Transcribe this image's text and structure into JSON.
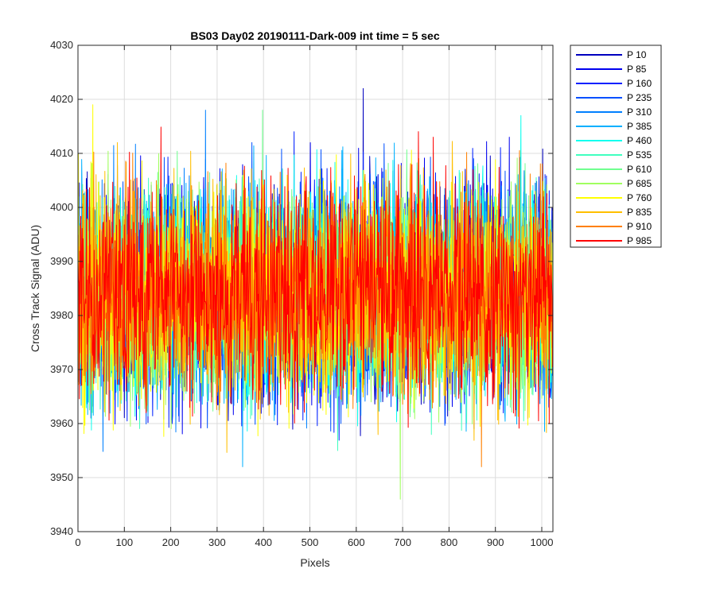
{
  "chart_data": {
    "type": "line",
    "title": "BS03 Day02 20190111-Dark-009 int time = 5 sec",
    "xlabel": "Pixels",
    "ylabel": "Cross Track Signal (ADU)",
    "xlim": [
      0,
      1024
    ],
    "ylim": [
      3940,
      4030
    ],
    "xticks": [
      0,
      100,
      200,
      300,
      400,
      500,
      600,
      700,
      800,
      900,
      1000
    ],
    "yticks": [
      3940,
      3950,
      3960,
      3970,
      3980,
      3990,
      4000,
      4010,
      4020,
      4030
    ],
    "grid": true,
    "legend_position": "outside-top-right",
    "n_points_per_series": 1024,
    "signal_mean": 3984,
    "signal_typical_range": [
      3960,
      4010
    ],
    "series": [
      {
        "name": "P 10",
        "color": "#0000bf",
        "peak": {
          "x": 615,
          "y": 4022
        }
      },
      {
        "name": "P 85",
        "color": "#0000ef",
        "peak": {
          "x": 930,
          "y": 4013
        }
      },
      {
        "name": "P 160",
        "color": "#0020ff",
        "peak": {
          "x": 466,
          "y": 4014
        }
      },
      {
        "name": "P 235",
        "color": "#0050ff",
        "peak": {
          "x": 375,
          "y": 4012
        }
      },
      {
        "name": "P 310",
        "color": "#0080ff",
        "peak": {
          "x": 275,
          "y": 4018
        }
      },
      {
        "name": "P 385",
        "color": "#00b0ff",
        "trough": {
          "x": 355,
          "y": 3952
        }
      },
      {
        "name": "P 460",
        "color": "#10ffef",
        "peak": {
          "x": 955,
          "y": 4017
        }
      },
      {
        "name": "P 535",
        "color": "#40ffbf",
        "trough": {
          "x": 560,
          "y": 3955
        }
      },
      {
        "name": "P 610",
        "color": "#70ff8f",
        "peak": {
          "x": 398,
          "y": 4018
        }
      },
      {
        "name": "P 685",
        "color": "#a0ff5f",
        "trough": {
          "x": 695,
          "y": 3946
        }
      },
      {
        "name": "P 760",
        "color": "#ffff00",
        "peak": {
          "x": 32,
          "y": 4019
        }
      },
      {
        "name": "P 835",
        "color": "#ffbf00",
        "peak": {
          "x": 85,
          "y": 4012
        }
      },
      {
        "name": "P 910",
        "color": "#ff8000",
        "trough": {
          "x": 870,
          "y": 3952
        }
      },
      {
        "name": "P 985",
        "color": "#ff0000",
        "peak": {
          "x": 766,
          "y": 4013
        }
      }
    ]
  }
}
